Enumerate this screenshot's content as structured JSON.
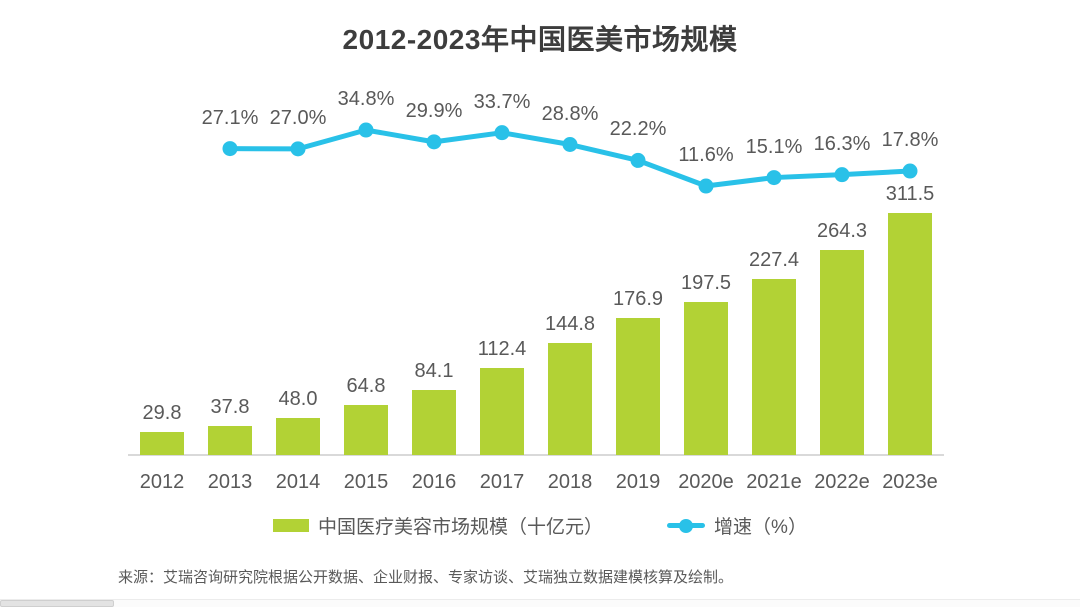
{
  "chart_data": {
    "type": "bar",
    "title": "2012-2023年中国医美市场规模",
    "categories": [
      "2012",
      "2013",
      "2014",
      "2015",
      "2016",
      "2017",
      "2018",
      "2019",
      "2020e",
      "2021e",
      "2022e",
      "2023e"
    ],
    "series": [
      {
        "name": "中国医疗美容市场规模（十亿元）",
        "type": "bar",
        "color": "#b2d235",
        "values": [
          29.8,
          37.8,
          48.0,
          64.8,
          84.1,
          112.4,
          144.8,
          176.9,
          197.5,
          227.4,
          264.3,
          311.5
        ],
        "labels": [
          "29.8",
          "37.8",
          "48.0",
          "64.8",
          "84.1",
          "112.4",
          "144.8",
          "176.9",
          "197.5",
          "227.4",
          "264.3",
          "311.5"
        ]
      },
      {
        "name": "增速（%）",
        "type": "line",
        "color": "#29c1e8",
        "values": [
          null,
          27.1,
          27.0,
          34.8,
          29.9,
          33.7,
          28.8,
          22.2,
          11.6,
          15.1,
          16.3,
          17.8
        ],
        "labels": [
          "",
          "27.1%",
          "27.0%",
          "34.8%",
          "29.9%",
          "33.7%",
          "28.8%",
          "22.2%",
          "11.6%",
          "15.1%",
          "16.3%",
          "17.8%"
        ]
      }
    ],
    "legend_position": "bottom",
    "grid": false,
    "axis_line_color": "#d9d9d9",
    "label_color": "#595959",
    "title_color": "#3d3d3d"
  },
  "source": "来源：艾瑞咨询研究院根据公开数据、企业财报、专家访谈、艾瑞独立数据建模核算及绘制。"
}
